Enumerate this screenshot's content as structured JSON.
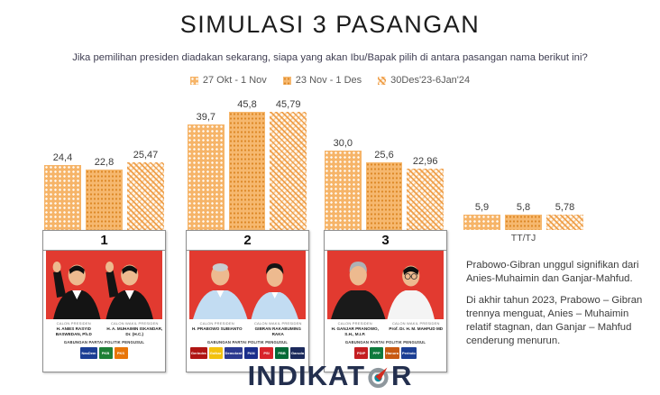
{
  "title": "SIMULASI 3 PASANGAN",
  "subtitle": "Jika pemilihan presiden diadakan sekarang, siapa yang akan Ibu/Bapak pilih di antara pasangan nama berikut ini?",
  "colors": {
    "bar_orange": "#F6B468",
    "bar_dot_dark": "#DD8826",
    "bar_hatch_orange": "#EE983C",
    "card_red": "#E23A30",
    "brand_navy": "#232F4E",
    "compass_teal": "#12889B",
    "compass_red": "#D32B1E"
  },
  "legend": [
    {
      "label": "27 Okt - 1 Nov",
      "pattern": "dots-white"
    },
    {
      "label": "23 Nov - 1 Des",
      "pattern": "dots-dark"
    },
    {
      "label": "30Des'23-6Jan'24",
      "pattern": "orange-weave"
    }
  ],
  "chart_data": {
    "type": "bar",
    "categories": [
      "Pasangan 1 (Anies-Muhaimin)",
      "Pasangan 2 (Prabowo-Gibran)",
      "Pasangan 3 (Ganjar-Mahfud)",
      "TT/TJ"
    ],
    "series": [
      {
        "name": "27 Okt - 1 Nov",
        "values": [
          24.4,
          39.7,
          30.0,
          5.9
        ],
        "labels": [
          "24,4",
          "39,7",
          "30,0",
          "5,9"
        ]
      },
      {
        "name": "23 Nov - 1 Des",
        "values": [
          22.8,
          45.8,
          25.6,
          5.8
        ],
        "labels": [
          "22,8",
          "45,8",
          "25,6",
          "5,8"
        ]
      },
      {
        "name": "30Des'23-6Jan'24",
        "values": [
          25.47,
          45.79,
          22.96,
          5.78
        ],
        "labels": [
          "25,47",
          "45,79",
          "22,96",
          "5,78"
        ]
      }
    ],
    "unit": "percent",
    "ylim": [
      0,
      50
    ],
    "grid": false,
    "legend_position": "top",
    "tt_tj_label": "TT/TJ"
  },
  "cards": [
    {
      "number": "1",
      "president_role": "CALON PRESIDEN",
      "president": "H. ANIES RASYID BASWEDAN, Ph.D",
      "vp_role": "CALON WAKIL PRESIDEN",
      "vp": "H. A. MUHAIMIN ISKANDAR, Dr. (H.C.)",
      "coalition_label": "GABUNGAN PARTAI POLITIK PENGUSUL",
      "parties": [
        {
          "name": "NasDem",
          "color": "#1B3E94"
        },
        {
          "name": "PKB",
          "color": "#1E7F36"
        },
        {
          "name": "PKS",
          "color": "#E8760A"
        }
      ]
    },
    {
      "number": "2",
      "president_role": "CALON PRESIDEN",
      "president": "H. PRABOWO SUBIANTO",
      "vp_role": "CALON WAKIL PRESIDEN",
      "vp": "GIBRAN RAKABUMING RAKA",
      "coalition_label": "GABUNGAN PARTAI POLITIK PENGUSUL",
      "parties": [
        {
          "name": "Gerindra",
          "color": "#B01513"
        },
        {
          "name": "Golkar",
          "color": "#F2C10E"
        },
        {
          "name": "Demokrat",
          "color": "#2B3990"
        },
        {
          "name": "PAN",
          "color": "#1A2E8C"
        },
        {
          "name": "PSI",
          "color": "#D8232A"
        },
        {
          "name": "PBB",
          "color": "#046A38"
        },
        {
          "name": "Garuda",
          "color": "#1B2A5C"
        }
      ]
    },
    {
      "number": "3",
      "president_role": "CALON PRESIDEN",
      "president": "H. GANJAR PRANOWO, S.H., M.I.P.",
      "vp_role": "CALON WAKIL PRESIDEN",
      "vp": "Prof. Dr. H. M. MAHFUD MD",
      "coalition_label": "GABUNGAN PARTAI POLITIK PENGUSUL",
      "parties": [
        {
          "name": "PDIP",
          "color": "#C41E21"
        },
        {
          "name": "PPP",
          "color": "#0F7A3D"
        },
        {
          "name": "Hanura",
          "color": "#C85A12"
        },
        {
          "name": "Perindo",
          "color": "#1C3F94"
        }
      ]
    }
  ],
  "notes": [
    "Prabowo-Gibran unggul signifikan dari Anies-Muhaimin dan Ganjar-Mahfud.",
    "Di akhir tahun 2023, Prabowo – Gibran trennya menguat, Anies – Muhaimin relatif stagnan, dan Ganjar – Mahfud cenderung menurun."
  ],
  "brand": {
    "text_left": "INDIKAT",
    "text_right": "R",
    "full_name": "INDIKATOR"
  }
}
